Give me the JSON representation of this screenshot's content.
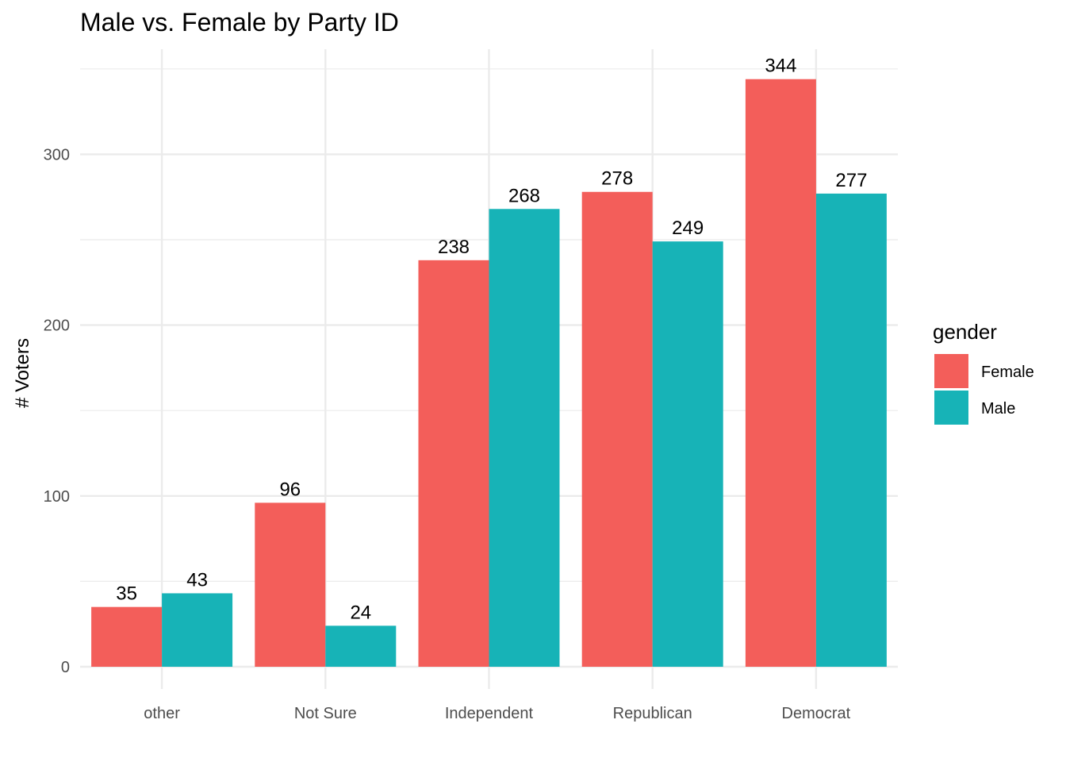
{
  "chart_data": {
    "type": "bar",
    "title": "Male vs. Female by Party ID",
    "xlabel": "",
    "ylabel": "# Voters",
    "categories": [
      "other",
      "Not Sure",
      "Independent",
      "Republican",
      "Democrat"
    ],
    "series": [
      {
        "name": "Female",
        "color": "#F35E5A",
        "values": [
          35,
          96,
          238,
          278,
          344
        ]
      },
      {
        "name": "Male",
        "color": "#17B3B7",
        "values": [
          43,
          24,
          268,
          249,
          277
        ]
      }
    ],
    "ylim": [
      0,
      350
    ],
    "yticks": [
      0,
      100,
      200,
      300
    ],
    "grid": true,
    "legend": {
      "title": "gender",
      "position": "right"
    }
  }
}
